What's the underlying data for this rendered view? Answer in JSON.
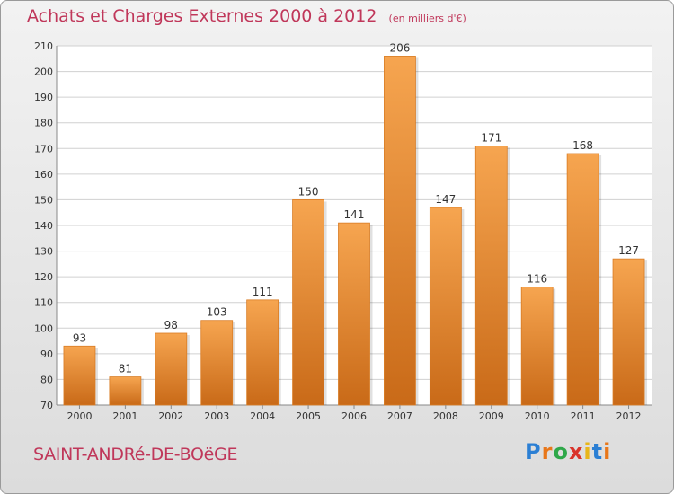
{
  "title": "Achats et Charges Externes 2000 à 2012",
  "subtitle": "(en milliers d'€)",
  "town": "SAINT-ANDRé-DE-BOëGE",
  "logo": {
    "text": "Proxiti",
    "letters": [
      "P",
      "r",
      "o",
      "x",
      "i",
      "t",
      "i"
    ],
    "colors": [
      "#2b7fd4",
      "#e8771a",
      "#2fa84a",
      "#d9342b",
      "#e8b61a",
      "#2b7fd4",
      "#e8771a"
    ]
  },
  "colors": {
    "bar": "#e8892f",
    "bar_light": "#f6a550",
    "bar_dark": "#c96a18",
    "title": "#c0375a",
    "plot_bg": "#ffffff"
  },
  "chart_data": {
    "type": "bar",
    "categories": [
      "2000",
      "2001",
      "2002",
      "2003",
      "2004",
      "2005",
      "2006",
      "2007",
      "2008",
      "2009",
      "2010",
      "2011",
      "2012"
    ],
    "values": [
      93,
      81,
      98,
      103,
      111,
      150,
      141,
      206,
      147,
      171,
      116,
      168,
      127
    ],
    "ylim": [
      70,
      210
    ],
    "yticks": [
      70,
      80,
      90,
      100,
      110,
      120,
      130,
      140,
      150,
      160,
      170,
      180,
      190,
      200,
      210
    ],
    "grid": true
  }
}
